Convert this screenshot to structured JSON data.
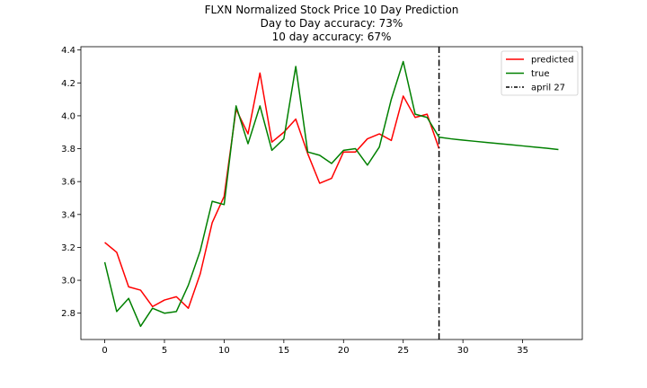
{
  "chart_data": {
    "type": "line",
    "title": "FLXN Normalized Stock Price 10 Day Prediction",
    "subtitle_lines": [
      "Day to Day accuracy: 73%",
      "10 day accuracy: 67%"
    ],
    "xlabel": "",
    "ylabel": "",
    "xlim": [
      -2,
      40
    ],
    "ylim": [
      2.64,
      4.42
    ],
    "xticks": [
      0,
      5,
      10,
      15,
      20,
      25,
      30,
      35
    ],
    "yticks": [
      2.8,
      3.0,
      3.2,
      3.4,
      3.6,
      3.8,
      4.0,
      4.2,
      4.4
    ],
    "ytick_labels": [
      "2.8",
      "3.0",
      "3.2",
      "3.4",
      "3.6",
      "3.8",
      "4.0",
      "4.2",
      "4.4"
    ],
    "grid": false,
    "legend_position": "top-right",
    "series": [
      {
        "name": "predicted",
        "color": "#ff0000",
        "x": [
          0,
          1,
          2,
          3,
          4,
          5,
          6,
          7,
          8,
          9,
          10,
          11,
          12,
          13,
          14,
          15,
          16,
          17,
          18,
          19,
          20,
          21,
          22,
          23,
          24,
          25,
          26,
          27,
          28
        ],
        "y": [
          3.23,
          3.17,
          2.96,
          2.94,
          2.84,
          2.88,
          2.9,
          2.83,
          3.04,
          3.35,
          3.51,
          4.04,
          3.89,
          4.26,
          3.84,
          3.9,
          3.98,
          3.77,
          3.59,
          3.62,
          3.78,
          3.78,
          3.86,
          3.89,
          3.85,
          4.12,
          3.99,
          4.01,
          3.8
        ]
      },
      {
        "name": "true",
        "color": "#008000",
        "x": [
          0,
          1,
          2,
          3,
          4,
          5,
          6,
          7,
          8,
          9,
          10,
          11,
          12,
          13,
          14,
          15,
          16,
          17,
          18,
          19,
          20,
          21,
          22,
          23,
          24,
          25,
          26,
          27,
          28,
          29,
          30,
          31,
          32,
          33,
          34,
          35,
          36,
          37,
          38
        ],
        "y": [
          3.11,
          2.81,
          2.89,
          2.72,
          2.83,
          2.8,
          2.81,
          2.97,
          3.18,
          3.48,
          3.46,
          4.06,
          3.83,
          4.06,
          3.79,
          3.86,
          4.3,
          3.78,
          3.76,
          3.71,
          3.79,
          3.8,
          3.7,
          3.81,
          4.1,
          4.33,
          4.01,
          3.99,
          3.87,
          3.86,
          3.852,
          3.845,
          3.838,
          3.831,
          3.824,
          3.817,
          3.81,
          3.803,
          3.795
        ]
      }
    ],
    "vline": {
      "x": 28,
      "name": "april 27",
      "color": "#000000",
      "style": "dash-dot"
    }
  }
}
